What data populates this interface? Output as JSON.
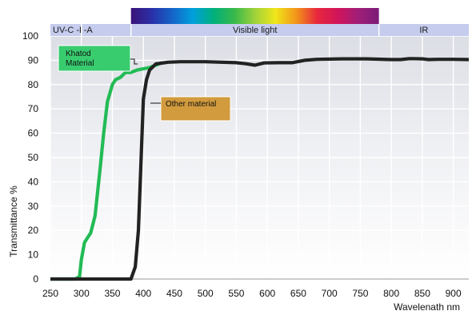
{
  "chart_data": {
    "type": "line",
    "title": "",
    "xlabel": "Wavelenath nm",
    "ylabel": "Transmittance %",
    "xlim": [
      250,
      925
    ],
    "ylim": [
      0,
      100
    ],
    "x_ticks": [
      250,
      300,
      350,
      400,
      450,
      500,
      550,
      600,
      650,
      700,
      750,
      800,
      850,
      900
    ],
    "y_ticks": [
      0,
      10,
      20,
      30,
      40,
      50,
      60,
      70,
      80,
      90,
      100
    ],
    "grid": true,
    "bands": [
      {
        "label": "UV-C -B",
        "from": 250,
        "to": 300
      },
      {
        "label": "-A",
        "from": 300,
        "to": 380
      },
      {
        "label": "Visible light",
        "from": 380,
        "to": 780
      },
      {
        "label": "IR",
        "from": 780,
        "to": 925
      }
    ],
    "series": [
      {
        "name": "Khatod Material",
        "color": "#22bb55",
        "x": [
          250,
          290,
          297,
          300,
          305,
          310,
          315,
          322,
          330,
          336,
          342,
          350,
          355,
          363,
          371,
          380,
          390,
          400,
          410,
          420,
          430
        ],
        "values": [
          0,
          0,
          1,
          8,
          15,
          17,
          19,
          26,
          45,
          60,
          73,
          80,
          82,
          83,
          85,
          85,
          86,
          86.5,
          87,
          88,
          89
        ]
      },
      {
        "name": "Other material",
        "color": "#222222",
        "x": [
          250,
          380,
          387,
          392,
          395,
          400,
          405,
          410,
          420,
          440,
          460,
          500,
          550,
          565,
          580,
          595,
          620,
          640,
          660,
          680,
          720,
          760,
          800,
          815,
          830,
          850,
          860,
          875,
          900,
          925
        ],
        "values": [
          0,
          0,
          5,
          20,
          40,
          74,
          82,
          86,
          88.5,
          89.2,
          89.4,
          89.4,
          89,
          88.6,
          88,
          88.9,
          89,
          89,
          90,
          90.4,
          90.6,
          90.6,
          90.3,
          90.3,
          90.7,
          90.6,
          90.3,
          90.4,
          90.4,
          90.3
        ]
      }
    ],
    "callouts": [
      {
        "lines": [
          "Khatod",
          "Material"
        ],
        "color": "#38cc6f",
        "series": "Khatod Material"
      },
      {
        "lines": [
          "Other material"
        ],
        "color": "#d29b3e",
        "series": "Other material"
      }
    ],
    "spectrum_colors": [
      "#3a1378",
      "#2a2fa8",
      "#1464c8",
      "#00a0dc",
      "#00b07c",
      "#37b84a",
      "#9fd23a",
      "#f0e619",
      "#f29419",
      "#e8283c",
      "#d2145a",
      "#a01e78",
      "#7a1c78"
    ]
  }
}
